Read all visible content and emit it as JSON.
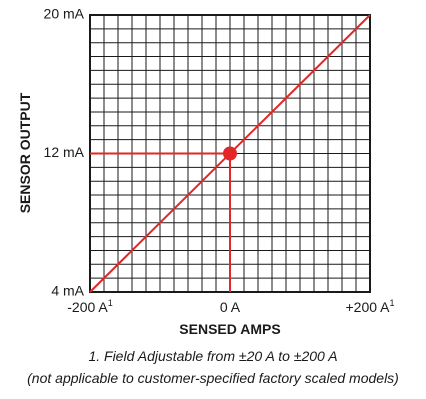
{
  "chart_data": {
    "type": "line",
    "xlabel": "SENSED AMPS",
    "ylabel": "SENSOR OUTPUT",
    "xlim": [
      -200,
      200
    ],
    "ylim": [
      4,
      20
    ],
    "x_ticks": [
      {
        "value": -200,
        "label": "-200 A",
        "sup": "1"
      },
      {
        "value": 0,
        "label": "0 A",
        "sup": ""
      },
      {
        "value": 200,
        "label": "+200 A",
        "sup": "1"
      }
    ],
    "y_ticks": [
      {
        "value": 20,
        "label": "20 mA"
      },
      {
        "value": 12,
        "label": "12 mA"
      },
      {
        "value": 4,
        "label": "4 mA"
      }
    ],
    "grid": true,
    "grid_divisions": {
      "x": 20,
      "y": 20
    },
    "series": [
      {
        "x": [
          -200,
          200
        ],
        "y": [
          4,
          20
        ]
      }
    ],
    "highlight_point": {
      "x": 0,
      "y": 12
    },
    "line_color": "#e32626",
    "grid_color": "#1a1a1a"
  },
  "footnotes": {
    "line1": "1. Field Adjustable from ±20 A to ±200 A",
    "line2": "(not applicable to customer-specified factory scaled models)"
  }
}
